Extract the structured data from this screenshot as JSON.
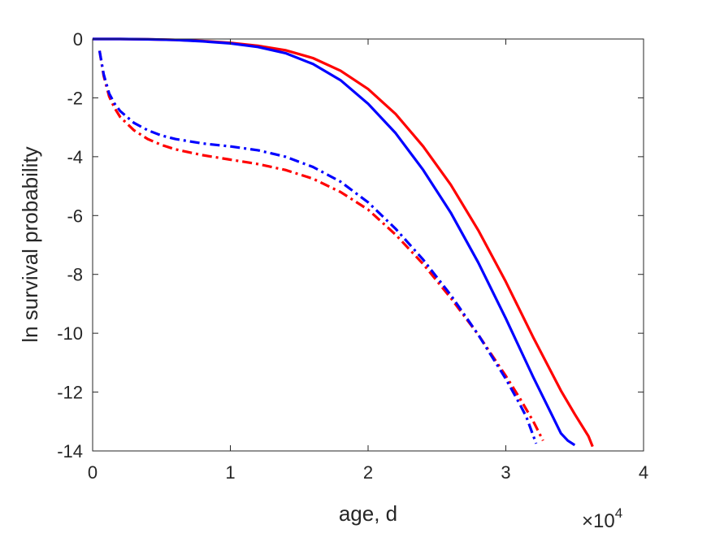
{
  "chart_data": {
    "type": "line",
    "xlabel": "age, d",
    "ylabel": "ln survival probability",
    "xlim": [
      0,
      40000
    ],
    "ylim": [
      -14,
      0
    ],
    "x_ticks": [
      0,
      10000,
      20000,
      30000,
      40000
    ],
    "x_tick_labels": [
      "0",
      "1",
      "2",
      "3",
      "4"
    ],
    "x_exponent_label": {
      "base": "×10",
      "exp": "4"
    },
    "y_ticks": [
      0,
      -2,
      -4,
      -6,
      -8,
      -10,
      -12,
      -14
    ],
    "y_tick_labels": [
      "0",
      "-2",
      "-4",
      "-6",
      "-8",
      "-10",
      "-12",
      "-14"
    ],
    "grid": false,
    "box": true,
    "series": [
      {
        "color": "#ff0000",
        "style": "solid",
        "x": [
          0,
          2000,
          4000,
          6000,
          8000,
          10000,
          12000,
          14000,
          16000,
          18000,
          20000,
          22000,
          24000,
          26000,
          28000,
          30000,
          32000,
          34000,
          35000,
          36000,
          36300
        ],
        "y": [
          0,
          0,
          -0.01,
          -0.03,
          -0.07,
          -0.13,
          -0.23,
          -0.38,
          -0.65,
          -1.08,
          -1.7,
          -2.55,
          -3.65,
          -4.95,
          -6.5,
          -8.25,
          -10.15,
          -11.95,
          -12.75,
          -13.5,
          -13.85
        ]
      },
      {
        "color": "#0000ff",
        "style": "solid",
        "x": [
          0,
          2000,
          4000,
          6000,
          8000,
          10000,
          12000,
          14000,
          16000,
          18000,
          20000,
          22000,
          24000,
          26000,
          28000,
          30000,
          32000,
          33000,
          34000,
          34500,
          35000
        ],
        "y": [
          0,
          0,
          -0.01,
          -0.03,
          -0.08,
          -0.15,
          -0.27,
          -0.48,
          -0.85,
          -1.4,
          -2.2,
          -3.2,
          -4.45,
          -5.9,
          -7.6,
          -9.5,
          -11.5,
          -12.45,
          -13.4,
          -13.65,
          -13.8
        ]
      },
      {
        "color": "#ff0000",
        "style": "dashdot",
        "x": [
          500,
          800,
          1200,
          1600,
          2000,
          3000,
          4000,
          5000,
          6000,
          8000,
          10000,
          12000,
          14000,
          16000,
          18000,
          20000,
          22000,
          24000,
          26000,
          28000,
          30000,
          31000,
          32000,
          32700
        ],
        "y": [
          -0.4,
          -1.25,
          -1.95,
          -2.35,
          -2.65,
          -3.1,
          -3.4,
          -3.6,
          -3.75,
          -3.95,
          -4.1,
          -4.25,
          -4.45,
          -4.75,
          -5.2,
          -5.8,
          -6.65,
          -7.65,
          -8.8,
          -10.05,
          -11.45,
          -12.2,
          -13.0,
          -13.65
        ]
      },
      {
        "color": "#0000ff",
        "style": "dashdot",
        "x": [
          500,
          800,
          1200,
          1600,
          2000,
          3000,
          4000,
          5000,
          6000,
          8000,
          10000,
          12000,
          14000,
          16000,
          18000,
          20000,
          22000,
          24000,
          26000,
          28000,
          30000,
          31000,
          31500,
          32200
        ],
        "y": [
          -0.4,
          -1.2,
          -1.85,
          -2.2,
          -2.45,
          -2.85,
          -3.1,
          -3.28,
          -3.4,
          -3.55,
          -3.65,
          -3.78,
          -4.0,
          -4.35,
          -4.85,
          -5.55,
          -6.45,
          -7.5,
          -8.7,
          -10.05,
          -11.55,
          -12.4,
          -12.85,
          -13.75
        ]
      }
    ]
  }
}
